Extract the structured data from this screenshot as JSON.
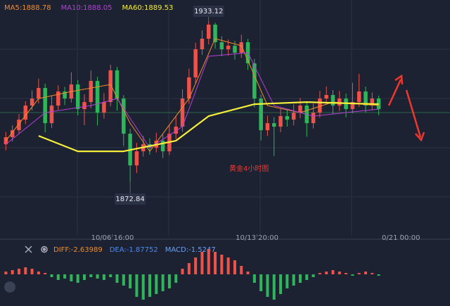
{
  "chart_data": {
    "type": "candlestick",
    "annotation": "黄金4小时图",
    "up_color": "#f0524a",
    "down_color": "#2fb55a",
    "ylim": [
      1852.6,
      1941
    ],
    "xlim": [
      -0.9,
      67.9
    ],
    "xticks": [
      {
        "value": 16.3,
        "label": "10/06 16:00"
      },
      {
        "value": 38.4,
        "label": "10/13 20:00"
      },
      {
        "value": 60.4,
        "label": "0/21 00:00"
      }
    ],
    "candles": [
      [
        1886.88,
        1891.5,
        1884.6,
        1889.52
      ],
      [
        1889.52,
        1894.0,
        1887.9,
        1892.16
      ],
      [
        1892.16,
        1898.2,
        1890.8,
        1896.12
      ],
      [
        1896.12,
        1903.0,
        1894.5,
        1901.4
      ],
      [
        1901.4,
        1907.1,
        1899.6,
        1904.04
      ],
      [
        1904.04,
        1911.5,
        1902.2,
        1908.0
      ],
      [
        1908.0,
        1909.6,
        1891.3,
        1894.8
      ],
      [
        1894.8,
        1905.2,
        1893.0,
        1901.4
      ],
      [
        1901.4,
        1909.0,
        1899.8,
        1906.68
      ],
      [
        1906.68,
        1908.4,
        1901.6,
        1904.04
      ],
      [
        1904.04,
        1913.9,
        1902.5,
        1909.32
      ],
      [
        1909.32,
        1911.0,
        1897.7,
        1900.08
      ],
      [
        1900.08,
        1905.6,
        1894.1,
        1902.72
      ],
      [
        1902.72,
        1914.5,
        1900.3,
        1910.64
      ],
      [
        1910.64,
        1912.2,
        1893.9,
        1898.76
      ],
      [
        1898.76,
        1906.0,
        1896.5,
        1902.72
      ],
      [
        1902.72,
        1916.7,
        1901.1,
        1914.6
      ],
      [
        1914.6,
        1915.9,
        1899.5,
        1904.04
      ],
      [
        1904.04,
        1905.3,
        1886.2,
        1890.84
      ],
      [
        1890.84,
        1892.7,
        1872.84,
        1878.96
      ],
      [
        1878.96,
        1887.4,
        1876.1,
        1884.24
      ],
      [
        1884.24,
        1890.0,
        1882.3,
        1886.88
      ],
      [
        1886.88,
        1889.1,
        1883.0,
        1885.56
      ],
      [
        1885.56,
        1891.2,
        1883.8,
        1888.2
      ],
      [
        1888.2,
        1890.5,
        1881.7,
        1884.24
      ],
      [
        1884.24,
        1893.9,
        1882.9,
        1890.84
      ],
      [
        1890.84,
        1897.3,
        1888.8,
        1893.48
      ],
      [
        1893.48,
        1907.5,
        1891.6,
        1904.04
      ],
      [
        1904.04,
        1915.2,
        1902.0,
        1911.96
      ],
      [
        1911.96,
        1925.0,
        1909.8,
        1922.52
      ],
      [
        1922.52,
        1929.6,
        1920.4,
        1926.48
      ],
      [
        1926.48,
        1933.12,
        1924.3,
        1931.76
      ],
      [
        1931.76,
        1932.5,
        1922.8,
        1925.16
      ],
      [
        1925.16,
        1927.4,
        1919.9,
        1922.52
      ],
      [
        1922.52,
        1926.2,
        1920.1,
        1923.84
      ],
      [
        1923.84,
        1925.7,
        1918.6,
        1921.2
      ],
      [
        1921.2,
        1928.0,
        1919.3,
        1925.16
      ],
      [
        1925.16,
        1926.4,
        1914.8,
        1917.24
      ],
      [
        1917.24,
        1918.9,
        1900.7,
        1904.04
      ],
      [
        1904.04,
        1905.5,
        1888.3,
        1892.16
      ],
      [
        1892.16,
        1897.6,
        1890.0,
        1894.8
      ],
      [
        1894.8,
        1897.1,
        1882.5,
        1893.48
      ],
      [
        1893.48,
        1900.2,
        1891.4,
        1897.44
      ],
      [
        1897.44,
        1899.8,
        1893.5,
        1896.12
      ],
      [
        1896.12,
        1901.9,
        1894.0,
        1898.76
      ],
      [
        1898.76,
        1904.3,
        1896.6,
        1901.4
      ],
      [
        1901.4,
        1903.0,
        1889.7,
        1894.8
      ],
      [
        1894.8,
        1902.1,
        1892.8,
        1898.76
      ],
      [
        1898.76,
        1906.9,
        1896.9,
        1904.04
      ],
      [
        1904.04,
        1908.6,
        1901.7,
        1905.36
      ],
      [
        1905.36,
        1907.2,
        1898.3,
        1901.4
      ],
      [
        1901.4,
        1906.8,
        1899.4,
        1904.04
      ],
      [
        1904.04,
        1905.9,
        1897.0,
        1900.08
      ],
      [
        1900.08,
        1909.9,
        1898.5,
        1902.72
      ],
      [
        1902.72,
        1913.3,
        1900.9,
        1906.68
      ],
      [
        1906.68,
        1908.5,
        1898.8,
        1901.4
      ],
      [
        1901.4,
        1906.3,
        1899.6,
        1904.04
      ],
      [
        1904.04,
        1905.1,
        1897.8,
        1900.08
      ]
    ],
    "high_label": "chart_data.candles.31.1",
    "low_label": "chart_data.candles.19.2",
    "ma_series": [
      {
        "name": "MA5",
        "label": "MA5:1888.78",
        "color": "#f28c28",
        "x": [
          0,
          5,
          10,
          16,
          19,
          22,
          28,
          32,
          36,
          40,
          45,
          50,
          57
        ],
        "values": [
          1888.2,
          1904.04,
          1906.68,
          1909.32,
          1894.8,
          1884.24,
          1904.04,
          1926.48,
          1923.84,
          1901.4,
          1898.76,
          1902.72,
          1901.4
        ]
      },
      {
        "name": "MA10",
        "label": "MA10:1888.05",
        "color": "#b63fd6",
        "x": [
          0,
          6,
          13,
          17,
          22,
          27,
          31,
          37,
          41,
          47,
          57
        ],
        "values": [
          1886.88,
          1898.76,
          1901.4,
          1904.04,
          1885.56,
          1893.48,
          1919.88,
          1921.2,
          1901.4,
          1897.44,
          1900.08
        ]
      },
      {
        "name": "MA60",
        "label": "MA60:1889.53",
        "color": "#f5ee3a",
        "x": [
          5,
          11,
          18,
          26,
          31,
          38,
          46,
          57
        ],
        "values": [
          1890.05,
          1884.24,
          1884.24,
          1888.2,
          1897.44,
          1901.93,
          1902.72,
          1901.93
        ]
      }
    ],
    "macd": {
      "labels": [
        {
          "text": "DIFF:-2.63989",
          "color": "#f28c28"
        },
        {
          "text": "DEA:-1.87752",
          "color": "#4a8cf0"
        },
        {
          "text": "MACD:-1.5247",
          "color": "#6aa0f5"
        }
      ],
      "ylim": [
        -11.25,
        11.25
      ],
      "values": [
        1,
        1.5,
        2,
        2.5,
        2,
        1,
        0.5,
        -1,
        -2,
        -1.5,
        -2.5,
        -3,
        -2,
        -1,
        -1.5,
        -2,
        -1,
        -3,
        -4,
        -5,
        -8,
        -9,
        -8,
        -7,
        -6,
        -5,
        -3,
        2,
        4,
        6,
        8,
        9,
        8,
        7,
        6,
        5,
        3,
        1,
        -3,
        -6,
        -8,
        -9,
        -7,
        -5,
        -4,
        -3,
        -2,
        -1,
        0.5,
        1,
        1.5,
        1,
        0.5,
        -0.5,
        0.5,
        1,
        0.5,
        -0.5
      ]
    }
  }
}
